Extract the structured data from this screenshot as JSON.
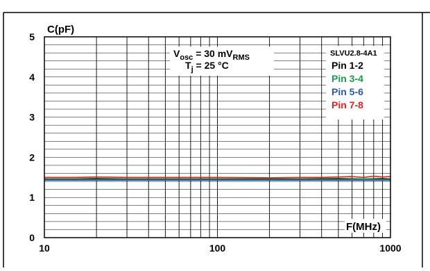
{
  "chart_data": {
    "type": "line",
    "ylabel": "C(pF)",
    "xlabel": "F(MHz)",
    "xscale": "log",
    "xlim": [
      10,
      1000
    ],
    "ylim": [
      0,
      5
    ],
    "xticks": [
      "10",
      "100",
      "1000"
    ],
    "yticks": [
      "0",
      "1",
      "2",
      "3",
      "4",
      "5"
    ],
    "grid": true,
    "conditions": {
      "vosc_main": "V",
      "vosc_sub": "osc",
      "vosc_value": " = 30 mV",
      "vosc_unit_sub": "RMS",
      "tj_main": "T",
      "tj_sub": "j",
      "tj_value": " = 25 °C"
    },
    "legend": {
      "title": "SLVU2.8-4A1",
      "placement": "top-right"
    },
    "series": [
      {
        "name": "Pin 1-2",
        "color": "#000000",
        "x": [
          10,
          15,
          20,
          30,
          50,
          100,
          200,
          300,
          500,
          700,
          900,
          1000
        ],
        "y": [
          1.46,
          1.46,
          1.47,
          1.46,
          1.46,
          1.46,
          1.46,
          1.46,
          1.47,
          1.46,
          1.47,
          1.46
        ]
      },
      {
        "name": "Pin 3-4",
        "color": "#1a9a4a",
        "x": [
          10,
          15,
          20,
          30,
          50,
          100,
          200,
          300,
          500,
          700,
          900,
          1000
        ],
        "y": [
          1.45,
          1.45,
          1.45,
          1.45,
          1.45,
          1.45,
          1.45,
          1.45,
          1.45,
          1.46,
          1.45,
          1.45
        ]
      },
      {
        "name": "Pin 5-6",
        "color": "#2a58a8",
        "x": [
          10,
          15,
          20,
          30,
          50,
          100,
          200,
          300,
          500,
          700,
          900,
          1000
        ],
        "y": [
          1.43,
          1.43,
          1.43,
          1.43,
          1.43,
          1.43,
          1.43,
          1.43,
          1.43,
          1.43,
          1.43,
          1.43
        ]
      },
      {
        "name": "Pin 7-8",
        "color": "#e02020",
        "x": [
          10,
          15,
          20,
          30,
          50,
          100,
          200,
          300,
          400,
          500,
          600,
          700,
          800,
          900,
          1000
        ],
        "y": [
          1.5,
          1.5,
          1.51,
          1.5,
          1.5,
          1.5,
          1.49,
          1.5,
          1.5,
          1.51,
          1.52,
          1.5,
          1.53,
          1.51,
          1.52
        ]
      }
    ]
  }
}
